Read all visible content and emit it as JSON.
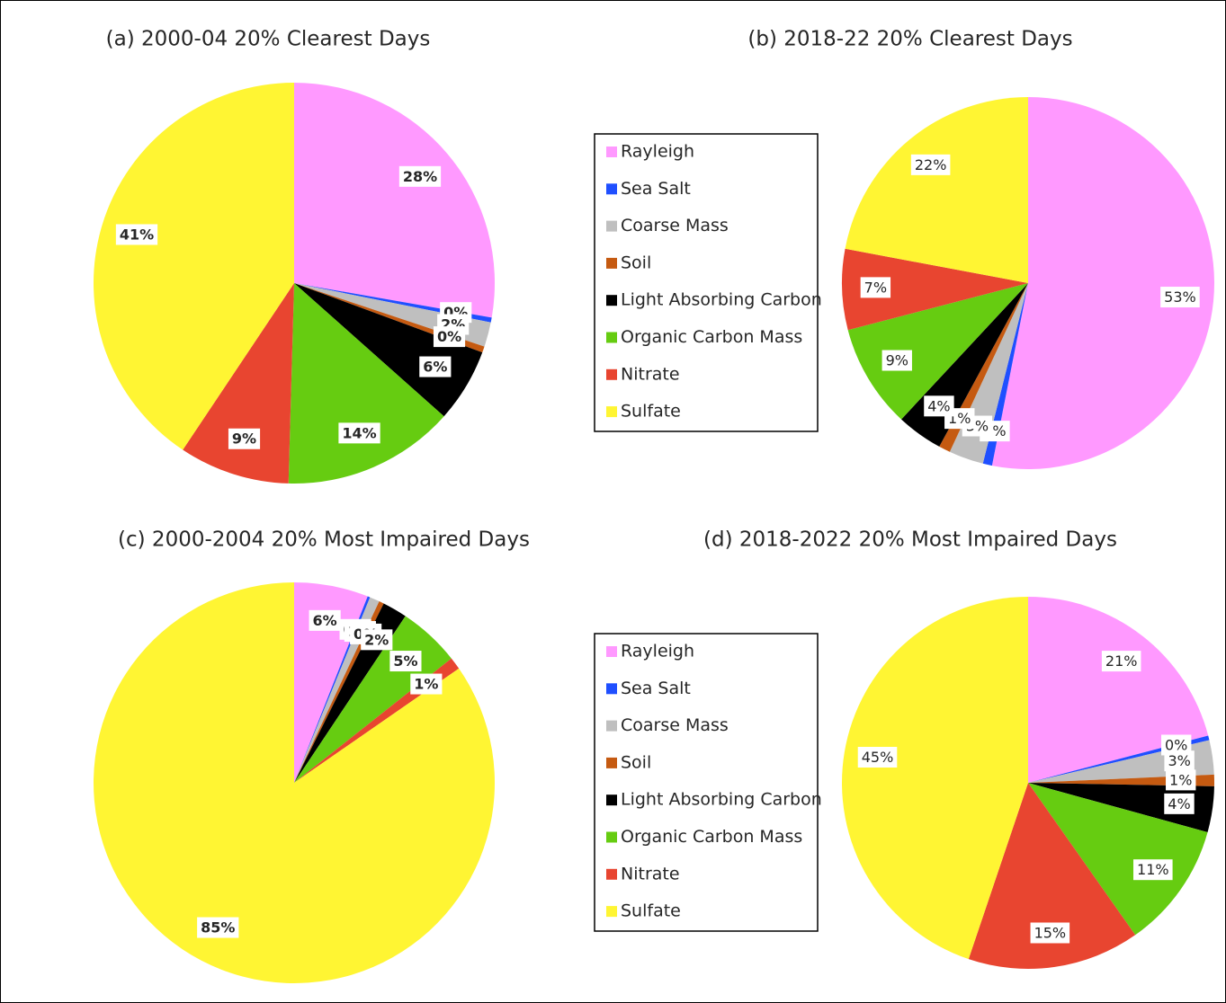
{
  "chart_data": [
    {
      "type": "pie",
      "title": "(a) 2000-04 20% Clearest Days",
      "categories": [
        "Rayleigh",
        "Sea Salt",
        "Coarse Mass",
        "Soil",
        "Light Absorbing Carbon",
        "Organic Carbon Mass",
        "Nitrate",
        "Sulfate"
      ],
      "values": [
        28,
        0.4,
        2,
        0.5,
        6,
        14,
        9,
        41
      ],
      "value_labels": [
        "28%",
        "0%",
        "2%",
        "0%",
        "6%",
        "14%",
        "9%",
        "41%"
      ],
      "colors": [
        "#ff99ff",
        "#1f4fff",
        "#bfbfbf",
        "#c55a11",
        "#000000",
        "#66cc11",
        "#e84530",
        "#fff533"
      ]
    },
    {
      "type": "pie",
      "title": "(b) 2018-22 20% Clearest Days",
      "categories": [
        "Rayleigh",
        "Sea Salt",
        "Coarse Mass",
        "Soil",
        "Light Absorbing Carbon",
        "Organic Carbon Mass",
        "Nitrate",
        "Sulfate"
      ],
      "values": [
        53,
        0.8,
        3,
        1,
        4,
        9,
        7,
        22
      ],
      "value_labels": [
        "53%",
        "1%",
        "3%",
        "1%",
        "4%",
        "9%",
        "7%",
        "22%"
      ],
      "colors": [
        "#ff99ff",
        "#1f4fff",
        "#bfbfbf",
        "#c55a11",
        "#000000",
        "#66cc11",
        "#e84530",
        "#fff533"
      ]
    },
    {
      "type": "pie",
      "title": "(c) 2000-2004 20% Most Impaired Days",
      "categories": [
        "Rayleigh",
        "Sea Salt",
        "Coarse Mass",
        "Soil",
        "Light Absorbing Carbon",
        "Organic Carbon Mass",
        "Nitrate",
        "Sulfate"
      ],
      "values": [
        6,
        0.2,
        0.8,
        0.4,
        2,
        5,
        1,
        85
      ],
      "value_labels": [
        "6%",
        "0%",
        "1%",
        "0%",
        "2%",
        "5%",
        "1%",
        "85%"
      ],
      "colors": [
        "#ff99ff",
        "#1f4fff",
        "#bfbfbf",
        "#c55a11",
        "#000000",
        "#66cc11",
        "#e84530",
        "#fff533"
      ]
    },
    {
      "type": "pie",
      "title": "(d) 2018-2022 20% Most Impaired Days",
      "categories": [
        "Rayleigh",
        "Sea Salt",
        "Coarse Mass",
        "Soil",
        "Light Absorbing Carbon",
        "Organic Carbon Mass",
        "Nitrate",
        "Sulfate"
      ],
      "values": [
        21,
        0.4,
        3,
        1,
        4,
        11,
        15,
        45
      ],
      "value_labels": [
        "21%",
        "0%",
        "3%",
        "1%",
        "4%",
        "11%",
        "15%",
        "45%"
      ],
      "colors": [
        "#ff99ff",
        "#1f4fff",
        "#bfbfbf",
        "#c55a11",
        "#000000",
        "#66cc11",
        "#e84530",
        "#fff533"
      ]
    }
  ]
}
